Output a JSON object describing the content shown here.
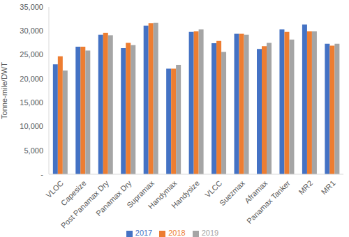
{
  "chart_data": {
    "type": "bar",
    "y_label": "Tonne-mile/DWT",
    "categories": [
      "VLOC",
      "Capesize",
      "Post Panamax Dry",
      "Panamax Dry",
      "Supramax",
      "Handymax",
      "Handysize",
      "VLCC",
      "Suezmax",
      "Aframax",
      "Panamax Tanker",
      "MR2",
      "MR1"
    ],
    "series": [
      {
        "name": "2017",
        "color": "#4472c4",
        "values": [
          23000,
          26700,
          29200,
          26400,
          31100,
          22100,
          29800,
          27400,
          29400,
          26200,
          30300,
          31300,
          27300
        ]
      },
      {
        "name": "2018",
        "color": "#ed7d31",
        "values": [
          24700,
          26700,
          29600,
          27500,
          31600,
          22100,
          29900,
          27900,
          29400,
          26800,
          29800,
          29900,
          26900
        ]
      },
      {
        "name": "2019",
        "color": "#a5a5a5",
        "values": [
          21700,
          25900,
          29100,
          27000,
          31700,
          22900,
          30300,
          25600,
          29200,
          27500,
          28200,
          29900,
          27300
        ]
      }
    ],
    "ylim": [
      0,
      35000
    ],
    "yticks": [
      {
        "value": 0,
        "label": "-"
      },
      {
        "value": 5000,
        "label": "5,000"
      },
      {
        "value": 10000,
        "label": "10,000"
      },
      {
        "value": 15000,
        "label": "15,000"
      },
      {
        "value": 20000,
        "label": "20,000"
      },
      {
        "value": 25000,
        "label": "25,000"
      },
      {
        "value": 30000,
        "label": "30,000"
      },
      {
        "value": 35000,
        "label": "35,000"
      }
    ],
    "grid": false,
    "legend": "bottom"
  }
}
